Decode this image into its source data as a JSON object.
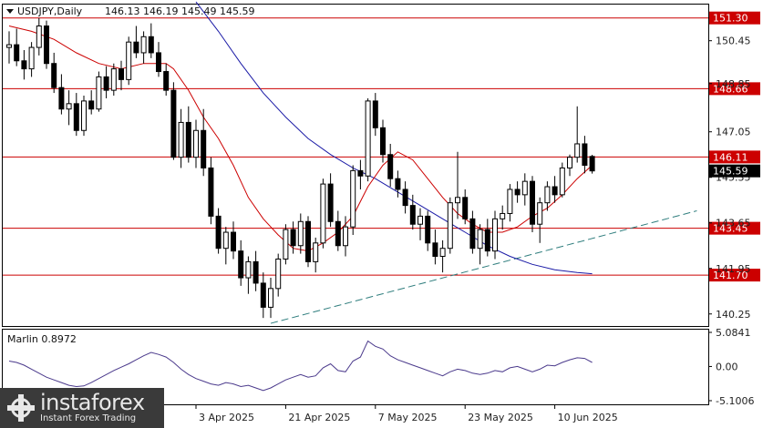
{
  "header": {
    "symbol": "USDJPY,Daily",
    "ohlc": "146.13 146.19 145.49 145.59"
  },
  "indicator": {
    "label": "Marlin 0.8972",
    "color": "#4b3a8c",
    "ticks": [
      "5.0841",
      "0.00",
      "-5.1006"
    ]
  },
  "colors": {
    "bull": "#ffffff",
    "bear": "#000000",
    "ma_fast": "#cc0000",
    "ma_slow": "#1a1aa6",
    "level": "#cc0000",
    "trend": "#2e7d7d"
  },
  "logo": {
    "brand": "instaforex",
    "tagline": "Instant Forex Trading"
  },
  "chart_data": [
    {
      "type": "candlestick",
      "title": "USDJPY,Daily",
      "y_ticks": [
        "150.45",
        "148.85",
        "147.05",
        "145.35",
        "143.65",
        "141.95",
        "140.25"
      ],
      "ylim": [
        139.8,
        151.8
      ],
      "x_ticks": [
        {
          "label": "3 Apr 2025",
          "index": 25
        },
        {
          "label": "21 Apr 2025",
          "index": 37
        },
        {
          "label": "7 May 2025",
          "index": 49
        },
        {
          "label": "23 May 2025",
          "index": 61
        },
        {
          "label": "10 Jun 2025",
          "index": 73
        }
      ],
      "levels": [
        {
          "value": 151.3,
          "label": "151.30"
        },
        {
          "value": 148.66,
          "label": "148.66"
        },
        {
          "value": 146.11,
          "label": "146.11"
        },
        {
          "value": 143.45,
          "label": "143.45"
        },
        {
          "value": 141.7,
          "label": "141.70"
        }
      ],
      "current_price": {
        "value": 145.59,
        "label": "145.59"
      },
      "candles": [
        [
          150.2,
          150.8,
          149.6,
          150.3
        ],
        [
          150.3,
          150.9,
          149.5,
          149.7
        ],
        [
          149.7,
          150.1,
          149.0,
          149.4
        ],
        [
          149.4,
          150.4,
          149.1,
          150.2
        ],
        [
          150.2,
          151.3,
          149.9,
          151.0
        ],
        [
          151.0,
          151.2,
          149.4,
          149.6
        ],
        [
          149.6,
          150.0,
          148.5,
          148.7
        ],
        [
          148.7,
          149.2,
          147.7,
          147.9
        ],
        [
          147.9,
          148.6,
          147.3,
          148.1
        ],
        [
          148.1,
          148.5,
          146.9,
          147.1
        ],
        [
          147.1,
          148.4,
          146.9,
          148.2
        ],
        [
          148.2,
          148.6,
          147.7,
          147.9
        ],
        [
          147.9,
          149.3,
          147.8,
          149.1
        ],
        [
          149.1,
          149.5,
          148.3,
          148.6
        ],
        [
          148.6,
          149.6,
          148.4,
          149.4
        ],
        [
          149.4,
          149.7,
          148.6,
          149.0
        ],
        [
          149.0,
          150.6,
          148.8,
          150.4
        ],
        [
          150.4,
          151.0,
          149.8,
          150.0
        ],
        [
          150.0,
          150.8,
          149.6,
          150.6
        ],
        [
          150.6,
          151.1,
          149.8,
          150.0
        ],
        [
          150.0,
          150.4,
          149.1,
          149.3
        ],
        [
          149.3,
          149.6,
          148.4,
          148.6
        ],
        [
          148.6,
          148.9,
          146.0,
          146.1
        ],
        [
          146.1,
          147.9,
          145.7,
          147.4
        ],
        [
          147.4,
          148.0,
          145.9,
          146.1
        ],
        [
          146.1,
          147.5,
          145.7,
          147.1
        ],
        [
          147.1,
          147.9,
          145.4,
          145.7
        ],
        [
          145.7,
          146.1,
          143.6,
          143.9
        ],
        [
          143.9,
          144.2,
          142.5,
          142.7
        ],
        [
          142.7,
          143.5,
          142.1,
          143.3
        ],
        [
          143.3,
          143.7,
          142.3,
          142.6
        ],
        [
          142.6,
          143.0,
          141.3,
          141.6
        ],
        [
          141.6,
          142.4,
          141.0,
          142.2
        ],
        [
          142.2,
          142.6,
          141.1,
          141.4
        ],
        [
          141.4,
          141.8,
          140.1,
          140.5
        ],
        [
          140.5,
          141.6,
          140.1,
          141.2
        ],
        [
          141.2,
          142.5,
          140.9,
          142.3
        ],
        [
          142.3,
          143.6,
          142.1,
          143.4
        ],
        [
          143.4,
          143.7,
          142.5,
          142.8
        ],
        [
          142.8,
          144.0,
          142.5,
          143.7
        ],
        [
          143.7,
          143.9,
          142.0,
          142.2
        ],
        [
          142.2,
          143.1,
          141.8,
          142.9
        ],
        [
          142.9,
          145.3,
          142.7,
          145.1
        ],
        [
          145.1,
          145.5,
          143.5,
          143.7
        ],
        [
          143.7,
          144.1,
          142.6,
          142.8
        ],
        [
          142.8,
          143.9,
          142.4,
          143.5
        ],
        [
          143.5,
          145.8,
          143.2,
          145.6
        ],
        [
          145.6,
          146.0,
          144.9,
          145.4
        ],
        [
          145.4,
          148.3,
          145.2,
          148.2
        ],
        [
          148.2,
          148.5,
          146.9,
          147.2
        ],
        [
          147.2,
          147.5,
          145.9,
          146.2
        ],
        [
          146.2,
          146.6,
          145.0,
          145.3
        ],
        [
          145.3,
          145.6,
          144.6,
          144.9
        ],
        [
          144.9,
          145.2,
          144.0,
          144.3
        ],
        [
          144.3,
          144.7,
          143.4,
          143.6
        ],
        [
          143.6,
          144.2,
          143.0,
          143.9
        ],
        [
          143.9,
          144.1,
          142.6,
          142.9
        ],
        [
          142.9,
          143.4,
          142.1,
          142.4
        ],
        [
          142.4,
          143.0,
          141.8,
          142.7
        ],
        [
          142.7,
          144.6,
          142.5,
          144.4
        ],
        [
          144.4,
          146.3,
          143.8,
          144.6
        ],
        [
          144.6,
          144.9,
          143.6,
          143.8
        ],
        [
          143.8,
          144.1,
          142.5,
          142.7
        ],
        [
          142.7,
          143.6,
          142.1,
          143.4
        ],
        [
          143.4,
          143.8,
          142.4,
          142.6
        ],
        [
          142.6,
          144.1,
          142.3,
          143.8
        ],
        [
          143.8,
          144.3,
          143.4,
          144.0
        ],
        [
          144.0,
          145.1,
          143.7,
          144.9
        ],
        [
          144.9,
          145.2,
          144.4,
          144.7
        ],
        [
          144.7,
          145.5,
          144.3,
          145.2
        ],
        [
          145.2,
          145.4,
          143.3,
          143.6
        ],
        [
          143.6,
          144.6,
          142.9,
          144.4
        ],
        [
          144.4,
          145.2,
          144.1,
          145.0
        ],
        [
          145.0,
          145.4,
          144.4,
          144.7
        ],
        [
          144.7,
          145.9,
          144.6,
          145.7
        ],
        [
          145.7,
          146.2,
          145.4,
          146.1
        ],
        [
          146.1,
          148.0,
          145.9,
          146.6
        ],
        [
          146.6,
          146.9,
          145.5,
          145.8
        ],
        [
          146.13,
          146.19,
          145.49,
          145.59
        ]
      ],
      "ma_fast": [
        [
          0,
          151.0
        ],
        [
          3,
          150.8
        ],
        [
          6,
          150.5
        ],
        [
          9,
          150.0
        ],
        [
          12,
          149.6
        ],
        [
          15,
          149.4
        ],
        [
          18,
          149.6
        ],
        [
          21,
          149.6
        ],
        [
          22,
          149.4
        ],
        [
          24,
          148.6
        ],
        [
          26,
          147.6
        ],
        [
          28,
          146.8
        ],
        [
          30,
          145.8
        ],
        [
          32,
          144.6
        ],
        [
          34,
          143.8
        ],
        [
          36,
          143.2
        ],
        [
          38,
          142.7
        ],
        [
          40,
          142.6
        ],
        [
          42,
          142.9
        ],
        [
          44,
          143.3
        ],
        [
          46,
          143.9
        ],
        [
          48,
          145.0
        ],
        [
          50,
          145.8
        ],
        [
          52,
          146.3
        ],
        [
          54,
          146.0
        ],
        [
          56,
          145.3
        ],
        [
          58,
          144.6
        ],
        [
          60,
          144.0
        ],
        [
          62,
          143.6
        ],
        [
          64,
          143.3
        ],
        [
          66,
          143.3
        ],
        [
          68,
          143.5
        ],
        [
          70,
          143.9
        ],
        [
          72,
          144.2
        ],
        [
          74,
          144.7
        ],
        [
          76,
          145.3
        ],
        [
          78,
          145.8
        ]
      ],
      "ma_slow": [
        [
          25,
          151.9
        ],
        [
          28,
          150.8
        ],
        [
          31,
          149.6
        ],
        [
          34,
          148.5
        ],
        [
          37,
          147.6
        ],
        [
          40,
          146.8
        ],
        [
          43,
          146.2
        ],
        [
          46,
          145.7
        ],
        [
          49,
          145.3
        ],
        [
          52,
          144.8
        ],
        [
          55,
          144.3
        ],
        [
          58,
          143.8
        ],
        [
          61,
          143.3
        ],
        [
          64,
          142.8
        ],
        [
          67,
          142.4
        ],
        [
          70,
          142.1
        ],
        [
          73,
          141.9
        ],
        [
          76,
          141.8
        ],
        [
          78,
          141.75
        ]
      ],
      "trend_line": [
        [
          35,
          139.9
        ],
        [
          92,
          144.1
        ]
      ],
      "oscillator": {
        "ylim": [
          -5.1006,
          5.0841
        ],
        "values": [
          0.8,
          0.6,
          0.2,
          -0.4,
          -1.0,
          -1.6,
          -2.0,
          -2.4,
          -2.8,
          -3.0,
          -2.9,
          -2.4,
          -1.8,
          -1.2,
          -0.6,
          -0.1,
          0.4,
          1.0,
          1.6,
          2.1,
          1.8,
          1.4,
          0.6,
          -0.4,
          -1.2,
          -1.8,
          -2.2,
          -2.6,
          -2.8,
          -2.4,
          -2.6,
          -3.0,
          -2.8,
          -3.2,
          -3.6,
          -3.2,
          -2.6,
          -2.0,
          -1.6,
          -1.2,
          -1.6,
          -1.4,
          -0.2,
          0.4,
          -0.6,
          -0.8,
          0.8,
          1.4,
          3.8,
          3.0,
          2.6,
          1.6,
          1.0,
          0.6,
          0.2,
          -0.2,
          -0.6,
          -1.0,
          -1.4,
          -0.8,
          -0.4,
          -0.6,
          -1.0,
          -1.2,
          -1.0,
          -0.6,
          -0.8,
          -0.2,
          0.0,
          -0.4,
          -0.8,
          -0.4,
          0.2,
          0.1,
          0.6,
          1.0,
          1.3,
          1.2,
          0.6
        ]
      }
    }
  ]
}
